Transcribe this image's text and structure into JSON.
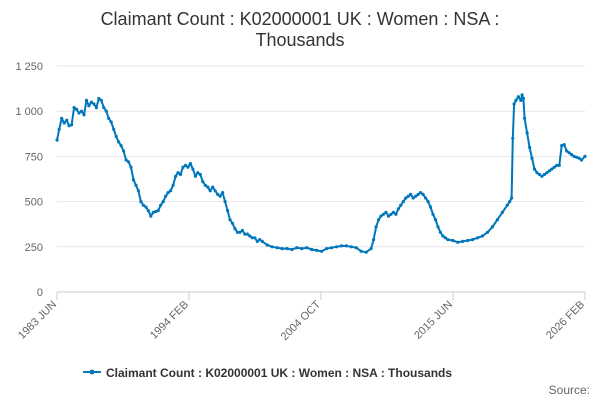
{
  "chart_data": {
    "type": "line",
    "title_lines": [
      "Claimant Count : K02000001 UK : Women : NSA :",
      "Thousands"
    ],
    "xlabel": "",
    "ylabel": "",
    "x_range": [
      1983.42,
      2026.08
    ],
    "ylim": [
      0,
      1250
    ],
    "y_ticks": [
      0,
      250,
      500,
      750,
      1000,
      1250
    ],
    "y_tick_labels": [
      "0",
      "250",
      "500",
      "750",
      "1 000",
      "1 250"
    ],
    "x_ticks": [
      {
        "label": "1983 JUN",
        "x": 1983.42
      },
      {
        "label": "1994 FEB",
        "x": 1994.08
      },
      {
        "label": "2004 OCT",
        "x": 2004.75
      },
      {
        "label": "2015 JUN",
        "x": 2015.42
      },
      {
        "label": "2026 FEB",
        "x": 2026.08
      }
    ],
    "grid": "horizontal",
    "legend_position": "bottom",
    "series": [
      {
        "name": "Claimant Count : K02000001 UK : Women : NSA : Thousands",
        "color": "#0077bb",
        "points": [
          [
            1983.42,
            840
          ],
          [
            1983.6,
            900
          ],
          [
            1983.8,
            960
          ],
          [
            1984.0,
            935
          ],
          [
            1984.2,
            950
          ],
          [
            1984.4,
            920
          ],
          [
            1984.6,
            925
          ],
          [
            1984.8,
            1020
          ],
          [
            1985.0,
            1010
          ],
          [
            1985.2,
            990
          ],
          [
            1985.4,
            1000
          ],
          [
            1985.6,
            980
          ],
          [
            1985.8,
            1060
          ],
          [
            1986.0,
            1030
          ],
          [
            1986.2,
            1050
          ],
          [
            1986.4,
            1040
          ],
          [
            1986.6,
            1020
          ],
          [
            1986.8,
            1070
          ],
          [
            1987.0,
            1060
          ],
          [
            1987.2,
            1020
          ],
          [
            1987.4,
            1000
          ],
          [
            1987.6,
            960
          ],
          [
            1987.8,
            940
          ],
          [
            1988.0,
            900
          ],
          [
            1988.2,
            860
          ],
          [
            1988.4,
            830
          ],
          [
            1988.6,
            810
          ],
          [
            1988.8,
            780
          ],
          [
            1989.0,
            730
          ],
          [
            1989.2,
            720
          ],
          [
            1989.4,
            690
          ],
          [
            1989.6,
            620
          ],
          [
            1989.8,
            590
          ],
          [
            1990.0,
            560
          ],
          [
            1990.2,
            500
          ],
          [
            1990.4,
            480
          ],
          [
            1990.6,
            470
          ],
          [
            1990.8,
            450
          ],
          [
            1991.0,
            420
          ],
          [
            1991.2,
            440
          ],
          [
            1991.4,
            445
          ],
          [
            1991.6,
            450
          ],
          [
            1991.8,
            480
          ],
          [
            1992.0,
            500
          ],
          [
            1992.2,
            530
          ],
          [
            1992.4,
            550
          ],
          [
            1992.6,
            560
          ],
          [
            1992.8,
            590
          ],
          [
            1993.0,
            640
          ],
          [
            1993.2,
            660
          ],
          [
            1993.4,
            650
          ],
          [
            1993.6,
            690
          ],
          [
            1993.8,
            700
          ],
          [
            1994.0,
            690
          ],
          [
            1994.2,
            710
          ],
          [
            1994.4,
            680
          ],
          [
            1994.6,
            640
          ],
          [
            1994.8,
            660
          ],
          [
            1995.0,
            650
          ],
          [
            1995.2,
            610
          ],
          [
            1995.4,
            590
          ],
          [
            1995.6,
            580
          ],
          [
            1995.8,
            560
          ],
          [
            1996.0,
            580
          ],
          [
            1996.2,
            560
          ],
          [
            1996.4,
            540
          ],
          [
            1996.6,
            530
          ],
          [
            1996.8,
            550
          ],
          [
            1997.0,
            500
          ],
          [
            1997.2,
            450
          ],
          [
            1997.4,
            400
          ],
          [
            1997.6,
            380
          ],
          [
            1997.8,
            350
          ],
          [
            1998.0,
            330
          ],
          [
            1998.2,
            330
          ],
          [
            1998.4,
            340
          ],
          [
            1998.6,
            320
          ],
          [
            1998.8,
            320
          ],
          [
            1999.0,
            310
          ],
          [
            1999.2,
            300
          ],
          [
            1999.4,
            300
          ],
          [
            1999.6,
            280
          ],
          [
            1999.8,
            290
          ],
          [
            2000.0,
            280
          ],
          [
            2000.4,
            260
          ],
          [
            2000.8,
            250
          ],
          [
            2001.2,
            245
          ],
          [
            2001.6,
            240
          ],
          [
            2002.0,
            240
          ],
          [
            2002.4,
            235
          ],
          [
            2002.8,
            245
          ],
          [
            2003.2,
            240
          ],
          [
            2003.6,
            245
          ],
          [
            2004.0,
            235
          ],
          [
            2004.4,
            230
          ],
          [
            2004.8,
            225
          ],
          [
            2005.2,
            240
          ],
          [
            2005.6,
            245
          ],
          [
            2006.0,
            250
          ],
          [
            2006.4,
            255
          ],
          [
            2006.8,
            255
          ],
          [
            2007.2,
            250
          ],
          [
            2007.6,
            245
          ],
          [
            2008.0,
            225
          ],
          [
            2008.4,
            220
          ],
          [
            2008.8,
            240
          ],
          [
            2009.0,
            290
          ],
          [
            2009.2,
            360
          ],
          [
            2009.4,
            400
          ],
          [
            2009.6,
            420
          ],
          [
            2009.8,
            430
          ],
          [
            2010.0,
            440
          ],
          [
            2010.2,
            420
          ],
          [
            2010.4,
            430
          ],
          [
            2010.6,
            440
          ],
          [
            2010.8,
            430
          ],
          [
            2011.0,
            460
          ],
          [
            2011.2,
            480
          ],
          [
            2011.4,
            500
          ],
          [
            2011.6,
            520
          ],
          [
            2011.8,
            530
          ],
          [
            2012.0,
            540
          ],
          [
            2012.2,
            520
          ],
          [
            2012.4,
            530
          ],
          [
            2012.6,
            540
          ],
          [
            2012.8,
            550
          ],
          [
            2013.0,
            540
          ],
          [
            2013.2,
            520
          ],
          [
            2013.4,
            500
          ],
          [
            2013.6,
            470
          ],
          [
            2013.8,
            430
          ],
          [
            2014.0,
            400
          ],
          [
            2014.2,
            360
          ],
          [
            2014.4,
            330
          ],
          [
            2014.6,
            310
          ],
          [
            2014.8,
            300
          ],
          [
            2015.0,
            290
          ],
          [
            2015.4,
            285
          ],
          [
            2015.8,
            275
          ],
          [
            2016.2,
            280
          ],
          [
            2016.6,
            285
          ],
          [
            2017.0,
            290
          ],
          [
            2017.4,
            300
          ],
          [
            2017.8,
            310
          ],
          [
            2018.2,
            330
          ],
          [
            2018.6,
            360
          ],
          [
            2019.0,
            400
          ],
          [
            2019.4,
            440
          ],
          [
            2019.8,
            480
          ],
          [
            2020.0,
            500
          ],
          [
            2020.15,
            520
          ],
          [
            2020.25,
            850
          ],
          [
            2020.35,
            1040
          ],
          [
            2020.5,
            1060
          ],
          [
            2020.7,
            1080
          ],
          [
            2020.9,
            1060
          ],
          [
            2021.0,
            1090
          ],
          [
            2021.1,
            1070
          ],
          [
            2021.2,
            960
          ],
          [
            2021.4,
            880
          ],
          [
            2021.6,
            800
          ],
          [
            2021.8,
            740
          ],
          [
            2022.0,
            680
          ],
          [
            2022.2,
            660
          ],
          [
            2022.4,
            650
          ],
          [
            2022.6,
            640
          ],
          [
            2022.8,
            650
          ],
          [
            2023.0,
            660
          ],
          [
            2023.2,
            670
          ],
          [
            2023.4,
            680
          ],
          [
            2023.6,
            690
          ],
          [
            2023.8,
            700
          ],
          [
            2024.0,
            700
          ],
          [
            2024.2,
            810
          ],
          [
            2024.4,
            815
          ],
          [
            2024.6,
            780
          ],
          [
            2024.8,
            770
          ],
          [
            2025.0,
            760
          ],
          [
            2025.2,
            750
          ],
          [
            2025.4,
            745
          ],
          [
            2025.6,
            740
          ],
          [
            2025.8,
            730
          ],
          [
            2026.08,
            750
          ]
        ]
      }
    ]
  },
  "legend": {
    "label": "Claimant Count : K02000001 UK : Women : NSA : Thousands"
  },
  "source": {
    "label": "Source:"
  }
}
